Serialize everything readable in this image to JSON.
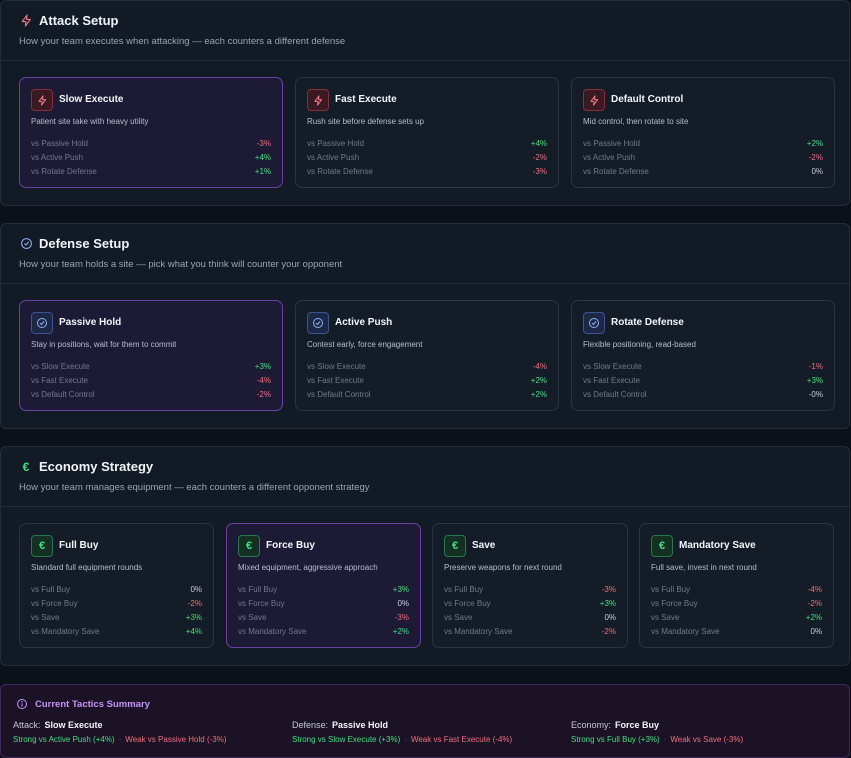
{
  "attack": {
    "title": "Attack Setup",
    "subtitle": "How your team executes when attacking — each counters a different defense",
    "cards": [
      {
        "title": "Slow Execute",
        "desc": "Patient site take with heavy utility",
        "stats": [
          [
            "vs Passive Hold",
            "-3%"
          ],
          [
            "vs Active Push",
            "+4%"
          ],
          [
            "vs Rotate Defense",
            "+1%"
          ]
        ]
      },
      {
        "title": "Fast Execute",
        "desc": "Rush site before defense sets up",
        "stats": [
          [
            "vs Passive Hold",
            "+4%"
          ],
          [
            "vs Active Push",
            "-2%"
          ],
          [
            "vs Rotate Defense",
            "-3%"
          ]
        ]
      },
      {
        "title": "Default Control",
        "desc": "Mid control, then rotate to site",
        "stats": [
          [
            "vs Passive Hold",
            "+2%"
          ],
          [
            "vs Active Push",
            "-2%"
          ],
          [
            "vs Rotate Defense",
            "0%"
          ]
        ]
      }
    ]
  },
  "defense": {
    "title": "Defense Setup",
    "subtitle": "How your team holds a site — pick what you think will counter your opponent",
    "cards": [
      {
        "title": "Passive Hold",
        "desc": "Stay in positions, wait for them to commit",
        "stats": [
          [
            "vs Slow Execute",
            "+3%"
          ],
          [
            "vs Fast Execute",
            "-4%"
          ],
          [
            "vs Default Control",
            "-2%"
          ]
        ]
      },
      {
        "title": "Active Push",
        "desc": "Contest early, force engagement",
        "stats": [
          [
            "vs Slow Execute",
            "-4%"
          ],
          [
            "vs Fast Execute",
            "+2%"
          ],
          [
            "vs Default Control",
            "+2%"
          ]
        ]
      },
      {
        "title": "Rotate Defense",
        "desc": "Flexible positioning, read-based",
        "stats": [
          [
            "vs Slow Execute",
            "-1%"
          ],
          [
            "vs Fast Execute",
            "+3%"
          ],
          [
            "vs Default Control",
            "-0%"
          ]
        ]
      }
    ]
  },
  "economy": {
    "title": "Economy Strategy",
    "subtitle": "How your team manages equipment — each counters a different opponent strategy",
    "icon_glyph": "€",
    "cards": [
      {
        "title": "Full Buy",
        "desc": "Standard full equipment rounds",
        "stats": [
          [
            "vs Full Buy",
            "0%"
          ],
          [
            "vs Force Buy",
            "-2%"
          ],
          [
            "vs Save",
            "+3%"
          ],
          [
            "vs Mandatory Save",
            "+4%"
          ]
        ]
      },
      {
        "title": "Force Buy",
        "desc": "Mixed equipment, aggressive approach",
        "stats": [
          [
            "vs Full Buy",
            "+3%"
          ],
          [
            "vs Force Buy",
            "0%"
          ],
          [
            "vs Save",
            "-3%"
          ],
          [
            "vs Mandatory Save",
            "+2%"
          ]
        ]
      },
      {
        "title": "Save",
        "desc": "Preserve weapons for next round",
        "stats": [
          [
            "vs Full Buy",
            "-3%"
          ],
          [
            "vs Force Buy",
            "+3%"
          ],
          [
            "vs Save",
            "0%"
          ],
          [
            "vs Mandatory Save",
            "-2%"
          ]
        ]
      },
      {
        "title": "Mandatory Save",
        "desc": "Full save, invest in next round",
        "stats": [
          [
            "vs Full Buy",
            "-4%"
          ],
          [
            "vs Force Buy",
            "-2%"
          ],
          [
            "vs Save",
            "+2%"
          ],
          [
            "vs Mandatory Save",
            "0%"
          ]
        ]
      }
    ]
  },
  "summary": {
    "title": "Current Tactics Summary",
    "cols": [
      {
        "label": "Attack:",
        "value": "Slow Execute",
        "strong": "Strong vs Active Push (+4%)",
        "sep": "·",
        "weak": "Weak vs Passive Hold (-3%)"
      },
      {
        "label": "Defense:",
        "value": "Passive Hold",
        "strong": "Strong vs Slow Execute (+3%)",
        "sep": "·",
        "weak": "Weak vs Fast Execute (-4%)"
      },
      {
        "label": "Economy:",
        "value": "Force Buy",
        "strong": "Strong vs Full Buy (+3%)",
        "sep": "·",
        "weak": "Weak vs Save (-3%)"
      }
    ]
  },
  "colors": {
    "positive": "#3ee080",
    "negative": "#f0707a",
    "selected_border": "#6b3fa8",
    "summary_accent": "#c594f5"
  }
}
